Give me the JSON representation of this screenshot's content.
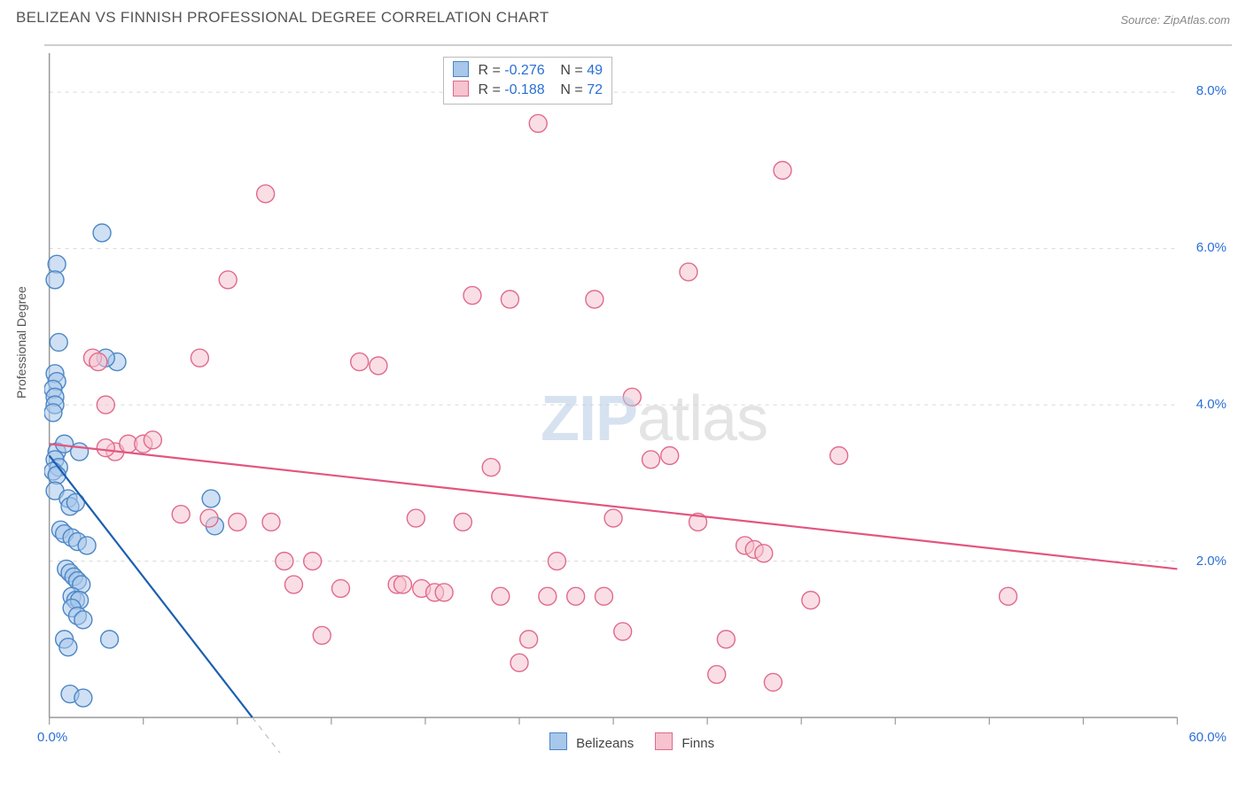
{
  "title": "BELIZEAN VS FINNISH PROFESSIONAL DEGREE CORRELATION CHART",
  "source_label": "Source: ZipAtlas.com",
  "y_axis_label": "Professional Degree",
  "watermark": {
    "part1": "ZIP",
    "part2": "atlas"
  },
  "chart": {
    "type": "scatter",
    "background_color": "#ffffff",
    "grid_color": "#d8d8d8",
    "axis_color": "#999999",
    "tick_label_color": "#2a6fd6",
    "xlim": [
      0,
      60
    ],
    "ylim": [
      0,
      8.5
    ],
    "x_ticks": [
      0,
      5,
      10,
      15,
      20,
      25,
      30,
      35,
      40,
      45,
      50,
      55,
      60
    ],
    "x_tick_labels": {
      "0": "0.0%",
      "60": "60.0%"
    },
    "y_ticks": [
      2.0,
      4.0,
      6.0,
      8.0
    ],
    "y_tick_labels": {
      "2.0": "2.0%",
      "4.0": "4.0%",
      "6.0": "6.0%",
      "8.0": "8.0%"
    },
    "marker_radius": 10,
    "marker_stroke_width": 1.4,
    "trend_line_width": 2.2,
    "trend_dash": "6,6",
    "series": [
      {
        "name": "Belizeans",
        "fill_color": "#a7c7eb",
        "stroke_color": "#4a86c5",
        "fill_opacity": 0.55,
        "trend_color": "#1b5fb0",
        "R": "-0.276",
        "N": "49",
        "trend": {
          "x1": 0,
          "y1": 3.35,
          "x2": 10.8,
          "y2": 0.0,
          "extend_x2": 15,
          "extend_y2": -1.3
        },
        "points": [
          [
            0.4,
            5.8
          ],
          [
            0.3,
            5.6
          ],
          [
            0.5,
            4.8
          ],
          [
            0.3,
            4.4
          ],
          [
            0.4,
            4.3
          ],
          [
            0.2,
            4.2
          ],
          [
            0.3,
            4.1
          ],
          [
            0.3,
            4.0
          ],
          [
            0.2,
            3.9
          ],
          [
            0.4,
            3.4
          ],
          [
            0.8,
            3.5
          ],
          [
            1.6,
            3.4
          ],
          [
            0.3,
            3.3
          ],
          [
            0.5,
            3.2
          ],
          [
            0.2,
            3.15
          ],
          [
            0.4,
            3.1
          ],
          [
            0.3,
            2.9
          ],
          [
            1.0,
            2.8
          ],
          [
            1.1,
            2.7
          ],
          [
            1.4,
            2.75
          ],
          [
            0.6,
            2.4
          ],
          [
            0.8,
            2.35
          ],
          [
            1.2,
            2.3
          ],
          [
            1.5,
            2.25
          ],
          [
            2.0,
            2.2
          ],
          [
            0.9,
            1.9
          ],
          [
            1.1,
            1.85
          ],
          [
            1.3,
            1.8
          ],
          [
            1.5,
            1.75
          ],
          [
            1.7,
            1.7
          ],
          [
            1.2,
            1.55
          ],
          [
            1.4,
            1.5
          ],
          [
            1.6,
            1.5
          ],
          [
            1.2,
            1.4
          ],
          [
            1.5,
            1.3
          ],
          [
            1.8,
            1.25
          ],
          [
            0.8,
            1.0
          ],
          [
            1.0,
            0.9
          ],
          [
            3.2,
            1.0
          ],
          [
            1.1,
            0.3
          ],
          [
            1.8,
            0.25
          ],
          [
            2.8,
            6.2
          ],
          [
            3.6,
            4.55
          ],
          [
            8.6,
            2.8
          ],
          [
            8.8,
            2.45
          ],
          [
            3.0,
            4.6
          ]
        ]
      },
      {
        "name": "Finns",
        "fill_color": "#f6c3cf",
        "stroke_color": "#e06a8a",
        "fill_opacity": 0.55,
        "trend_color": "#e2567f",
        "R": "-0.188",
        "N": "72",
        "trend": {
          "x1": 0,
          "y1": 3.5,
          "x2": 60,
          "y2": 1.9
        },
        "points": [
          [
            2.3,
            4.6
          ],
          [
            2.6,
            4.55
          ],
          [
            3.0,
            4.0
          ],
          [
            3.5,
            3.4
          ],
          [
            4.2,
            3.5
          ],
          [
            3.0,
            3.45
          ],
          [
            5.0,
            3.5
          ],
          [
            5.5,
            3.55
          ],
          [
            7.0,
            2.6
          ],
          [
            8.0,
            4.6
          ],
          [
            8.5,
            2.55
          ],
          [
            9.5,
            5.6
          ],
          [
            10.0,
            2.5
          ],
          [
            11.5,
            6.7
          ],
          [
            11.8,
            2.5
          ],
          [
            12.5,
            2.0
          ],
          [
            13.0,
            1.7
          ],
          [
            14.0,
            2.0
          ],
          [
            14.5,
            1.05
          ],
          [
            15.5,
            1.65
          ],
          [
            16.5,
            4.55
          ],
          [
            17.5,
            4.5
          ],
          [
            18.5,
            1.7
          ],
          [
            18.8,
            1.7
          ],
          [
            19.5,
            2.55
          ],
          [
            19.8,
            1.65
          ],
          [
            20.5,
            1.6
          ],
          [
            21.0,
            1.6
          ],
          [
            22.0,
            2.5
          ],
          [
            22.5,
            5.4
          ],
          [
            23.5,
            3.2
          ],
          [
            24.0,
            1.55
          ],
          [
            24.5,
            5.35
          ],
          [
            25.0,
            0.7
          ],
          [
            25.5,
            1.0
          ],
          [
            26.0,
            7.6
          ],
          [
            26.5,
            1.55
          ],
          [
            27.0,
            2.0
          ],
          [
            28.0,
            1.55
          ],
          [
            29.0,
            5.35
          ],
          [
            29.5,
            1.55
          ],
          [
            30.0,
            2.55
          ],
          [
            30.5,
            1.1
          ],
          [
            31.0,
            4.1
          ],
          [
            32.0,
            3.3
          ],
          [
            33.0,
            3.35
          ],
          [
            34.0,
            5.7
          ],
          [
            34.5,
            2.5
          ],
          [
            35.5,
            0.55
          ],
          [
            36.0,
            1.0
          ],
          [
            37.0,
            2.2
          ],
          [
            37.5,
            2.15
          ],
          [
            38.0,
            2.1
          ],
          [
            38.5,
            0.45
          ],
          [
            39.0,
            7.0
          ],
          [
            40.5,
            1.5
          ],
          [
            42.0,
            3.35
          ],
          [
            51.0,
            1.55
          ]
        ]
      }
    ]
  },
  "stats_box": {
    "rows": [
      {
        "swatch_fill": "#a7c7eb",
        "swatch_stroke": "#4a86c5",
        "r_label": "R =",
        "r_val": "-0.276",
        "n_label": "N =",
        "n_val": "49"
      },
      {
        "swatch_fill": "#f6c3cf",
        "swatch_stroke": "#e06a8a",
        "r_label": "R =",
        "r_val": "-0.188",
        "n_label": "N =",
        "n_val": "72"
      }
    ]
  },
  "legend": {
    "items": [
      {
        "swatch_fill": "#a7c7eb",
        "swatch_stroke": "#4a86c5",
        "label": "Belizeans"
      },
      {
        "swatch_fill": "#f6c3cf",
        "swatch_stroke": "#e06a8a",
        "label": "Finns"
      }
    ]
  }
}
